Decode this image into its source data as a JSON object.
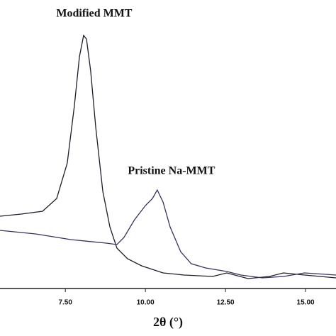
{
  "chart_data": {
    "type": "line",
    "x_label": "2θ (°)",
    "xlim": [
      5.46,
      15.95
    ],
    "ylim": [
      0,
      407
    ],
    "xticks": [
      {
        "value": 7.5,
        "label": "7.50"
      },
      {
        "value": 10,
        "label": "10.00"
      },
      {
        "value": 12.5,
        "label": "12.50"
      },
      {
        "value": 15,
        "label": "15.00"
      }
    ],
    "series": [
      {
        "name": "Modified  MMT",
        "color": "#1e1e2a",
        "x": [
          5.46,
          6.12,
          6.79,
          7.23,
          7.56,
          7.78,
          7.94,
          8.07,
          8.16,
          8.29,
          8.45,
          8.67,
          8.89,
          9.11,
          9.44,
          9.88,
          10.55,
          11.21,
          12.1,
          12.54,
          13.2,
          13.87,
          14.31,
          14.97,
          15.95
        ],
        "values": [
          102,
          105,
          109,
          127,
          177,
          257,
          327,
          357,
          352,
          307,
          227,
          137,
          87,
          57,
          42,
          32,
          22,
          19,
          17,
          22,
          14,
          17,
          22,
          19,
          15
        ]
      },
      {
        "name": "Pristine  Na-MMT",
        "color": "#33335e",
        "x": [
          5.46,
          6.57,
          7.67,
          8.78,
          9.11,
          9.33,
          9.66,
          10.0,
          10.22,
          10.37,
          10.55,
          10.77,
          11.1,
          11.43,
          11.88,
          12.54,
          12.98,
          13.65,
          14.31,
          14.97,
          15.95
        ],
        "values": [
          82,
          77,
          69,
          64,
          62,
          72,
          97,
          117,
          127,
          139,
          122,
          87,
          52,
          35,
          29,
          24,
          19,
          15,
          17,
          22,
          19
        ]
      }
    ]
  }
}
